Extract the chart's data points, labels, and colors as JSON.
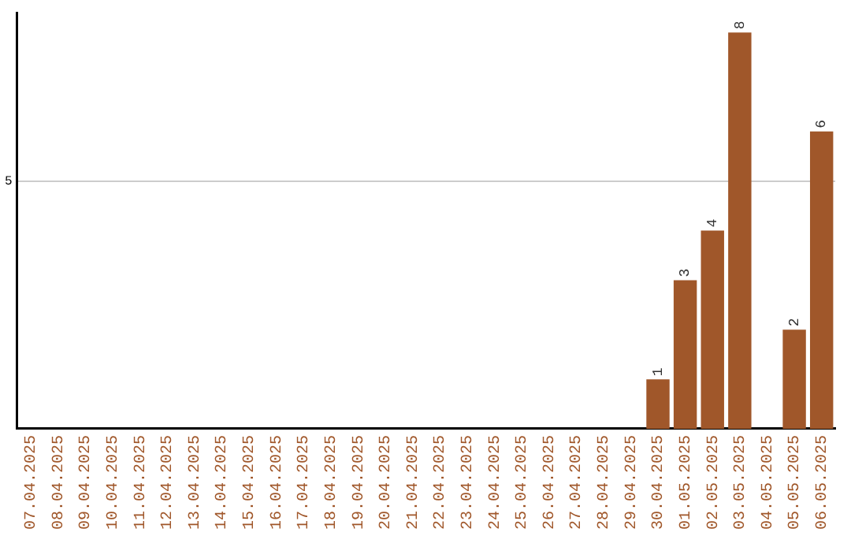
{
  "chart_data": {
    "type": "bar",
    "categories": [
      "07.04.2025",
      "08.04.2025",
      "09.04.2025",
      "10.04.2025",
      "11.04.2025",
      "12.04.2025",
      "13.04.2025",
      "14.04.2025",
      "15.04.2025",
      "16.04.2025",
      "17.04.2025",
      "18.04.2025",
      "19.04.2025",
      "20.04.2025",
      "21.04.2025",
      "22.04.2025",
      "23.04.2025",
      "24.04.2025",
      "25.04.2025",
      "26.04.2025",
      "27.04.2025",
      "28.04.2025",
      "29.04.2025",
      "30.04.2025",
      "01.05.2025",
      "02.05.2025",
      "03.05.2025",
      "04.05.2025",
      "05.05.2025",
      "06.05.2025"
    ],
    "values": [
      null,
      null,
      null,
      null,
      null,
      null,
      null,
      null,
      null,
      null,
      null,
      null,
      null,
      null,
      null,
      null,
      null,
      null,
      null,
      null,
      null,
      null,
      null,
      1,
      3,
      4,
      8,
      null,
      2,
      6
    ],
    "color": "#a0572a",
    "ylim": [
      0,
      8.4
    ],
    "yticks": [
      5
    ],
    "grid": "y",
    "data_labels": true,
    "legend": false
  }
}
